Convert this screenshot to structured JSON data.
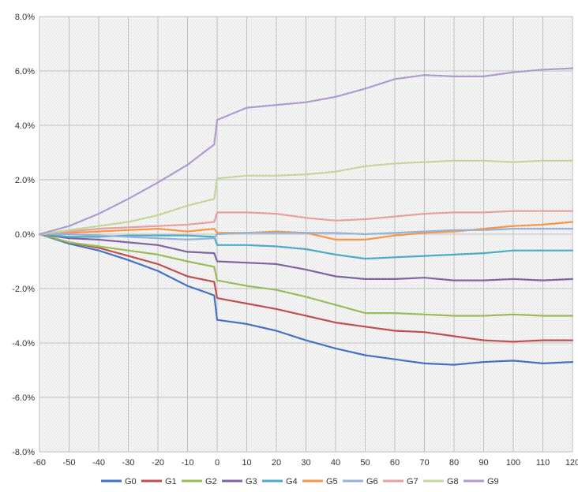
{
  "chart_data": {
    "type": "line",
    "title": "",
    "xlabel": "",
    "ylabel": "",
    "xlim": [
      -60,
      120
    ],
    "ylim": [
      -8,
      8
    ],
    "grid": true,
    "legend_position": "bottom",
    "x_ticks": [
      -60,
      -50,
      -40,
      -30,
      -20,
      -10,
      0,
      10,
      20,
      30,
      40,
      50,
      60,
      70,
      80,
      90,
      100,
      110,
      120
    ],
    "x_tick_labels": [
      "-60",
      "-50",
      "-40",
      "-30",
      "-20",
      "-10",
      "0",
      "10",
      "20",
      "30",
      "40",
      "50",
      "60",
      "70",
      "80",
      "90",
      "100",
      "110",
      "120"
    ],
    "y_ticks": [
      -8,
      -6,
      -4,
      -2,
      0,
      2,
      4,
      6,
      8
    ],
    "y_tick_labels": [
      "-8.0%",
      "-6.0%",
      "-4.0%",
      "-2.0%",
      "0.0%",
      "2.0%",
      "4.0%",
      "6.0%",
      "8.0%"
    ],
    "x": [
      -60,
      -50,
      -40,
      -30,
      -20,
      -10,
      -1,
      0,
      10,
      20,
      30,
      40,
      50,
      60,
      70,
      80,
      90,
      100,
      110,
      120
    ],
    "series": [
      {
        "name": "G0",
        "color": "#4472C4",
        "values": [
          0,
          -0.35,
          -0.6,
          -0.95,
          -1.35,
          -1.9,
          -2.25,
          -3.15,
          -3.3,
          -3.55,
          -3.9,
          -4.2,
          -4.45,
          -4.6,
          -4.75,
          -4.8,
          -4.7,
          -4.65,
          -4.75,
          -4.7
        ]
      },
      {
        "name": "G1",
        "color": "#C0504D",
        "values": [
          0,
          -0.3,
          -0.5,
          -0.8,
          -1.1,
          -1.55,
          -1.75,
          -2.35,
          -2.55,
          -2.75,
          -3.0,
          -3.25,
          -3.4,
          -3.55,
          -3.6,
          -3.75,
          -3.9,
          -3.95,
          -3.9,
          -3.9
        ]
      },
      {
        "name": "G2",
        "color": "#9BBB59",
        "values": [
          0,
          -0.3,
          -0.45,
          -0.6,
          -0.75,
          -1.0,
          -1.2,
          -1.7,
          -1.9,
          -2.05,
          -2.3,
          -2.6,
          -2.9,
          -2.9,
          -2.95,
          -3.0,
          -3.0,
          -2.95,
          -3.0,
          -3.0
        ]
      },
      {
        "name": "G3",
        "color": "#8064A2",
        "values": [
          0,
          -0.15,
          -0.2,
          -0.3,
          -0.4,
          -0.65,
          -0.7,
          -1.0,
          -1.05,
          -1.1,
          -1.3,
          -1.55,
          -1.65,
          -1.65,
          -1.6,
          -1.7,
          -1.7,
          -1.65,
          -1.7,
          -1.65
        ]
      },
      {
        "name": "G4",
        "color": "#4BACC6",
        "values": [
          0,
          -0.1,
          -0.1,
          -0.05,
          -0.05,
          -0.05,
          -0.1,
          -0.4,
          -0.4,
          -0.45,
          -0.55,
          -0.75,
          -0.9,
          -0.85,
          -0.8,
          -0.75,
          -0.7,
          -0.6,
          -0.6,
          -0.6
        ]
      },
      {
        "name": "G5",
        "color": "#F79646",
        "values": [
          0,
          0.05,
          0.1,
          0.15,
          0.2,
          0.1,
          0.2,
          0.05,
          0.05,
          0.1,
          0.05,
          -0.2,
          -0.2,
          -0.05,
          0.05,
          0.1,
          0.2,
          0.3,
          0.35,
          0.45
        ]
      },
      {
        "name": "G6",
        "color": "#95B3D7",
        "values": [
          0,
          0.0,
          -0.05,
          -0.1,
          -0.15,
          -0.2,
          -0.15,
          0.0,
          0.05,
          0.05,
          0.05,
          0.05,
          0.0,
          0.05,
          0.1,
          0.15,
          0.15,
          0.2,
          0.2,
          0.2
        ]
      },
      {
        "name": "G7",
        "color": "#E6A0A0",
        "values": [
          0,
          0.1,
          0.2,
          0.25,
          0.3,
          0.35,
          0.45,
          0.8,
          0.8,
          0.75,
          0.6,
          0.5,
          0.55,
          0.65,
          0.75,
          0.8,
          0.8,
          0.85,
          0.85,
          0.85
        ]
      },
      {
        "name": "G8",
        "color": "#C3D69B",
        "values": [
          0,
          0.15,
          0.3,
          0.45,
          0.7,
          1.05,
          1.3,
          2.05,
          2.15,
          2.15,
          2.2,
          2.3,
          2.5,
          2.6,
          2.65,
          2.7,
          2.7,
          2.65,
          2.7,
          2.7
        ]
      },
      {
        "name": "G9",
        "color": "#B09AD0",
        "values": [
          0,
          0.3,
          0.75,
          1.3,
          1.9,
          2.55,
          3.3,
          4.2,
          4.65,
          4.75,
          4.85,
          5.05,
          5.35,
          5.7,
          5.85,
          5.8,
          5.8,
          5.95,
          6.05,
          6.1
        ]
      }
    ]
  }
}
